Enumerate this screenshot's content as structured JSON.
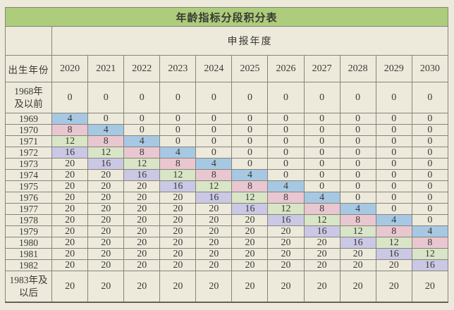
{
  "table": {
    "title": "年龄指标分段积分表",
    "column_group_header": "申报年度",
    "row_header": "出生年份",
    "years": [
      "2020",
      "2021",
      "2022",
      "2023",
      "2024",
      "2025",
      "2026",
      "2027",
      "2028",
      "2029",
      "2030"
    ],
    "rows": [
      {
        "label": "1968年\n及以前",
        "tall": true,
        "values": [
          0,
          0,
          0,
          0,
          0,
          0,
          0,
          0,
          0,
          0,
          0
        ]
      },
      {
        "label": "1969",
        "tall": false,
        "values": [
          4,
          0,
          0,
          0,
          0,
          0,
          0,
          0,
          0,
          0,
          0
        ]
      },
      {
        "label": "1970",
        "tall": false,
        "values": [
          8,
          4,
          0,
          0,
          0,
          0,
          0,
          0,
          0,
          0,
          0
        ]
      },
      {
        "label": "1971",
        "tall": false,
        "values": [
          12,
          8,
          4,
          0,
          0,
          0,
          0,
          0,
          0,
          0,
          0
        ]
      },
      {
        "label": "1972",
        "tall": false,
        "values": [
          16,
          12,
          8,
          4,
          0,
          0,
          0,
          0,
          0,
          0,
          0
        ]
      },
      {
        "label": "1973",
        "tall": false,
        "values": [
          20,
          16,
          12,
          8,
          4,
          0,
          0,
          0,
          0,
          0,
          0
        ]
      },
      {
        "label": "1974",
        "tall": false,
        "values": [
          20,
          20,
          16,
          12,
          8,
          4,
          0,
          0,
          0,
          0,
          0
        ]
      },
      {
        "label": "1975",
        "tall": false,
        "values": [
          20,
          20,
          20,
          16,
          12,
          8,
          4,
          0,
          0,
          0,
          0
        ]
      },
      {
        "label": "1976",
        "tall": false,
        "values": [
          20,
          20,
          20,
          20,
          16,
          12,
          8,
          4,
          0,
          0,
          0
        ]
      },
      {
        "label": "1977",
        "tall": false,
        "values": [
          20,
          20,
          20,
          20,
          20,
          16,
          12,
          8,
          4,
          0,
          0
        ]
      },
      {
        "label": "1978",
        "tall": false,
        "values": [
          20,
          20,
          20,
          20,
          20,
          20,
          16,
          12,
          8,
          4,
          0
        ]
      },
      {
        "label": "1979",
        "tall": false,
        "values": [
          20,
          20,
          20,
          20,
          20,
          20,
          20,
          16,
          12,
          8,
          4
        ]
      },
      {
        "label": "1980",
        "tall": false,
        "values": [
          20,
          20,
          20,
          20,
          20,
          20,
          20,
          20,
          16,
          12,
          8
        ]
      },
      {
        "label": "1981",
        "tall": false,
        "values": [
          20,
          20,
          20,
          20,
          20,
          20,
          20,
          20,
          20,
          16,
          12
        ]
      },
      {
        "label": "1982",
        "tall": false,
        "values": [
          20,
          20,
          20,
          20,
          20,
          20,
          20,
          20,
          20,
          20,
          16
        ]
      },
      {
        "label": "1983年及\n以后",
        "tall": true,
        "values": [
          20,
          20,
          20,
          20,
          20,
          20,
          20,
          20,
          20,
          20,
          20
        ]
      }
    ]
  },
  "value_colors": {
    "4": "#a7c8e3",
    "8": "#e9c7d1",
    "12": "#d8e5c7",
    "16": "#cbc8e5"
  },
  "colors": {
    "title_bg": "#adcc7c",
    "page_bg": "#edeadc",
    "grid_line": "#85857a",
    "text": "#3a3a33"
  }
}
